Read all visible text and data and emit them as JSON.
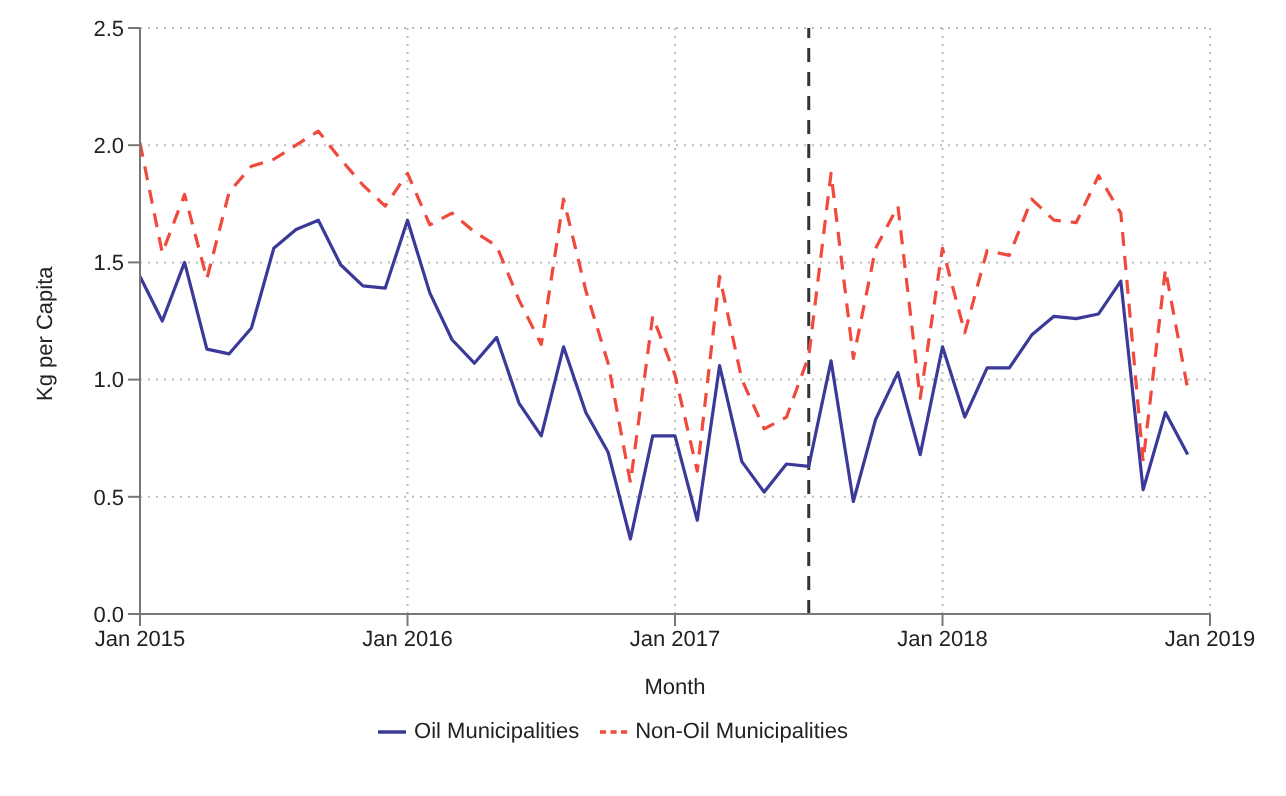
{
  "chart_data": {
    "type": "line",
    "xlabel": "Month",
    "ylabel": "Kg per Capita",
    "x": [
      "2015-01",
      "2015-02",
      "2015-03",
      "2015-04",
      "2015-05",
      "2015-06",
      "2015-07",
      "2015-08",
      "2015-09",
      "2015-10",
      "2015-11",
      "2015-12",
      "2016-01",
      "2016-02",
      "2016-03",
      "2016-04",
      "2016-05",
      "2016-06",
      "2016-07",
      "2016-08",
      "2016-09",
      "2016-10",
      "2016-11",
      "2016-12",
      "2017-01",
      "2017-02",
      "2017-03",
      "2017-04",
      "2017-05",
      "2017-06",
      "2017-07",
      "2017-08",
      "2017-09",
      "2017-10",
      "2017-11",
      "2017-12",
      "2018-01",
      "2018-02",
      "2018-03",
      "2018-04",
      "2018-05",
      "2018-06",
      "2018-07",
      "2018-08",
      "2018-09",
      "2018-10",
      "2018-11",
      "2018-12"
    ],
    "series": [
      {
        "name": "Oil Municipalities",
        "color": "#3c3a99",
        "line_style": "solid",
        "values": [
          1.44,
          1.25,
          1.5,
          1.13,
          1.11,
          1.22,
          1.56,
          1.64,
          1.68,
          1.49,
          1.4,
          1.39,
          1.68,
          1.37,
          1.17,
          1.07,
          1.18,
          0.9,
          0.76,
          1.14,
          0.86,
          0.69,
          0.32,
          0.76,
          0.76,
          0.4,
          1.06,
          0.65,
          0.52,
          0.64,
          0.63,
          1.08,
          0.48,
          0.83,
          1.03,
          0.68,
          1.14,
          0.84,
          1.05,
          1.05,
          1.19,
          1.27,
          1.26,
          1.28,
          1.42,
          0.53,
          0.86,
          0.68
        ]
      },
      {
        "name": "Non-Oil Municipalities",
        "color": "#f04a3c",
        "line_style": "dashed",
        "values": [
          2.01,
          1.54,
          1.79,
          1.43,
          1.8,
          1.91,
          1.94,
          2.0,
          2.06,
          1.94,
          1.83,
          1.74,
          1.88,
          1.66,
          1.71,
          1.63,
          1.57,
          1.34,
          1.15,
          1.77,
          1.38,
          1.07,
          0.56,
          1.27,
          1.02,
          0.61,
          1.44,
          1.0,
          0.79,
          0.84,
          1.1,
          1.88,
          1.09,
          1.56,
          1.74,
          0.92,
          1.56,
          1.2,
          1.55,
          1.53,
          1.77,
          1.68,
          1.67,
          1.87,
          1.71,
          0.65,
          1.47,
          0.96
        ]
      }
    ],
    "xlim": [
      "2015-01",
      "2019-01"
    ],
    "xticks": [
      {
        "value": "2015-01",
        "label": "Jan 2015"
      },
      {
        "value": "2016-01",
        "label": "Jan 2016"
      },
      {
        "value": "2017-01",
        "label": "Jan 2017"
      },
      {
        "value": "2018-01",
        "label": "Jan 2018"
      },
      {
        "value": "2019-01",
        "label": "Jan 2019"
      }
    ],
    "ylim": [
      0,
      2.5
    ],
    "yticks": [
      {
        "value": 0,
        "label": "0.0"
      },
      {
        "value": 0.5,
        "label": "0.5"
      },
      {
        "value": 1,
        "label": "1.0"
      },
      {
        "value": 1.5,
        "label": "1.5"
      },
      {
        "value": 2,
        "label": "2.0"
      },
      {
        "value": 2.5,
        "label": "2.5"
      }
    ],
    "ref_lines": [
      {
        "axis": "x",
        "value": "2017-07",
        "color": "#333333",
        "line_style": "dashed"
      }
    ],
    "grid": true,
    "legend": "bottom",
    "marker": "none"
  }
}
